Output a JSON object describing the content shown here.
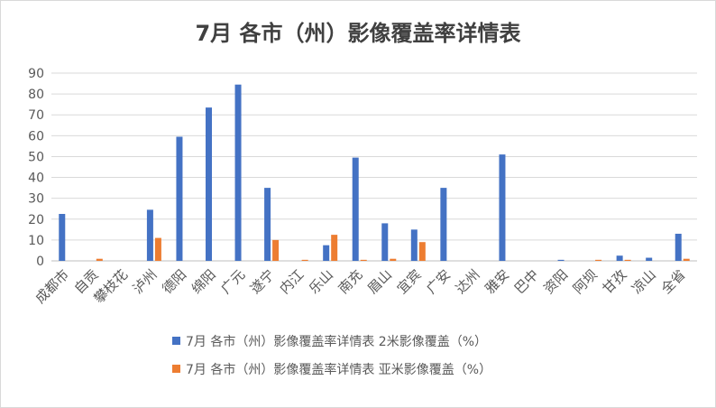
{
  "chart_data": {
    "type": "bar",
    "title": "7月 各市（州）影像覆盖率详情表",
    "xlabel": "",
    "ylabel": "",
    "ylim": [
      0,
      90
    ],
    "yticks": [
      0,
      10,
      20,
      30,
      40,
      50,
      60,
      70,
      80,
      90
    ],
    "grid": true,
    "legend_position": "bottom",
    "categories": [
      "成都市",
      "自贡",
      "攀枝花",
      "泸州",
      "德阳",
      "绵阳",
      "广元",
      "遂宁",
      "内江",
      "乐山",
      "南充",
      "眉山",
      "宜宾",
      "广安",
      "达州",
      "雅安",
      "巴中",
      "资阳",
      "阿坝",
      "甘孜",
      "凉山",
      "全省"
    ],
    "series": [
      {
        "name": "7月 各市（州）影像覆盖率详情表 2米影像覆盖（%）",
        "color": "#4472c4",
        "values": [
          22.5,
          0,
          0,
          24.5,
          59.5,
          73.5,
          84.5,
          35,
          0,
          7.5,
          49.5,
          18,
          15,
          35,
          0,
          51,
          0,
          0.5,
          0,
          2.5,
          1.5,
          13
        ]
      },
      {
        "name": "7月 各市（州）影像覆盖率详情表 亚米影像覆盖（%）",
        "color": "#ed7d31",
        "values": [
          0,
          1,
          0,
          11,
          0,
          0,
          0,
          10,
          0.5,
          12.5,
          0.5,
          1,
          9,
          0,
          0,
          0,
          0,
          0,
          0.5,
          0.5,
          0,
          1
        ]
      }
    ]
  }
}
